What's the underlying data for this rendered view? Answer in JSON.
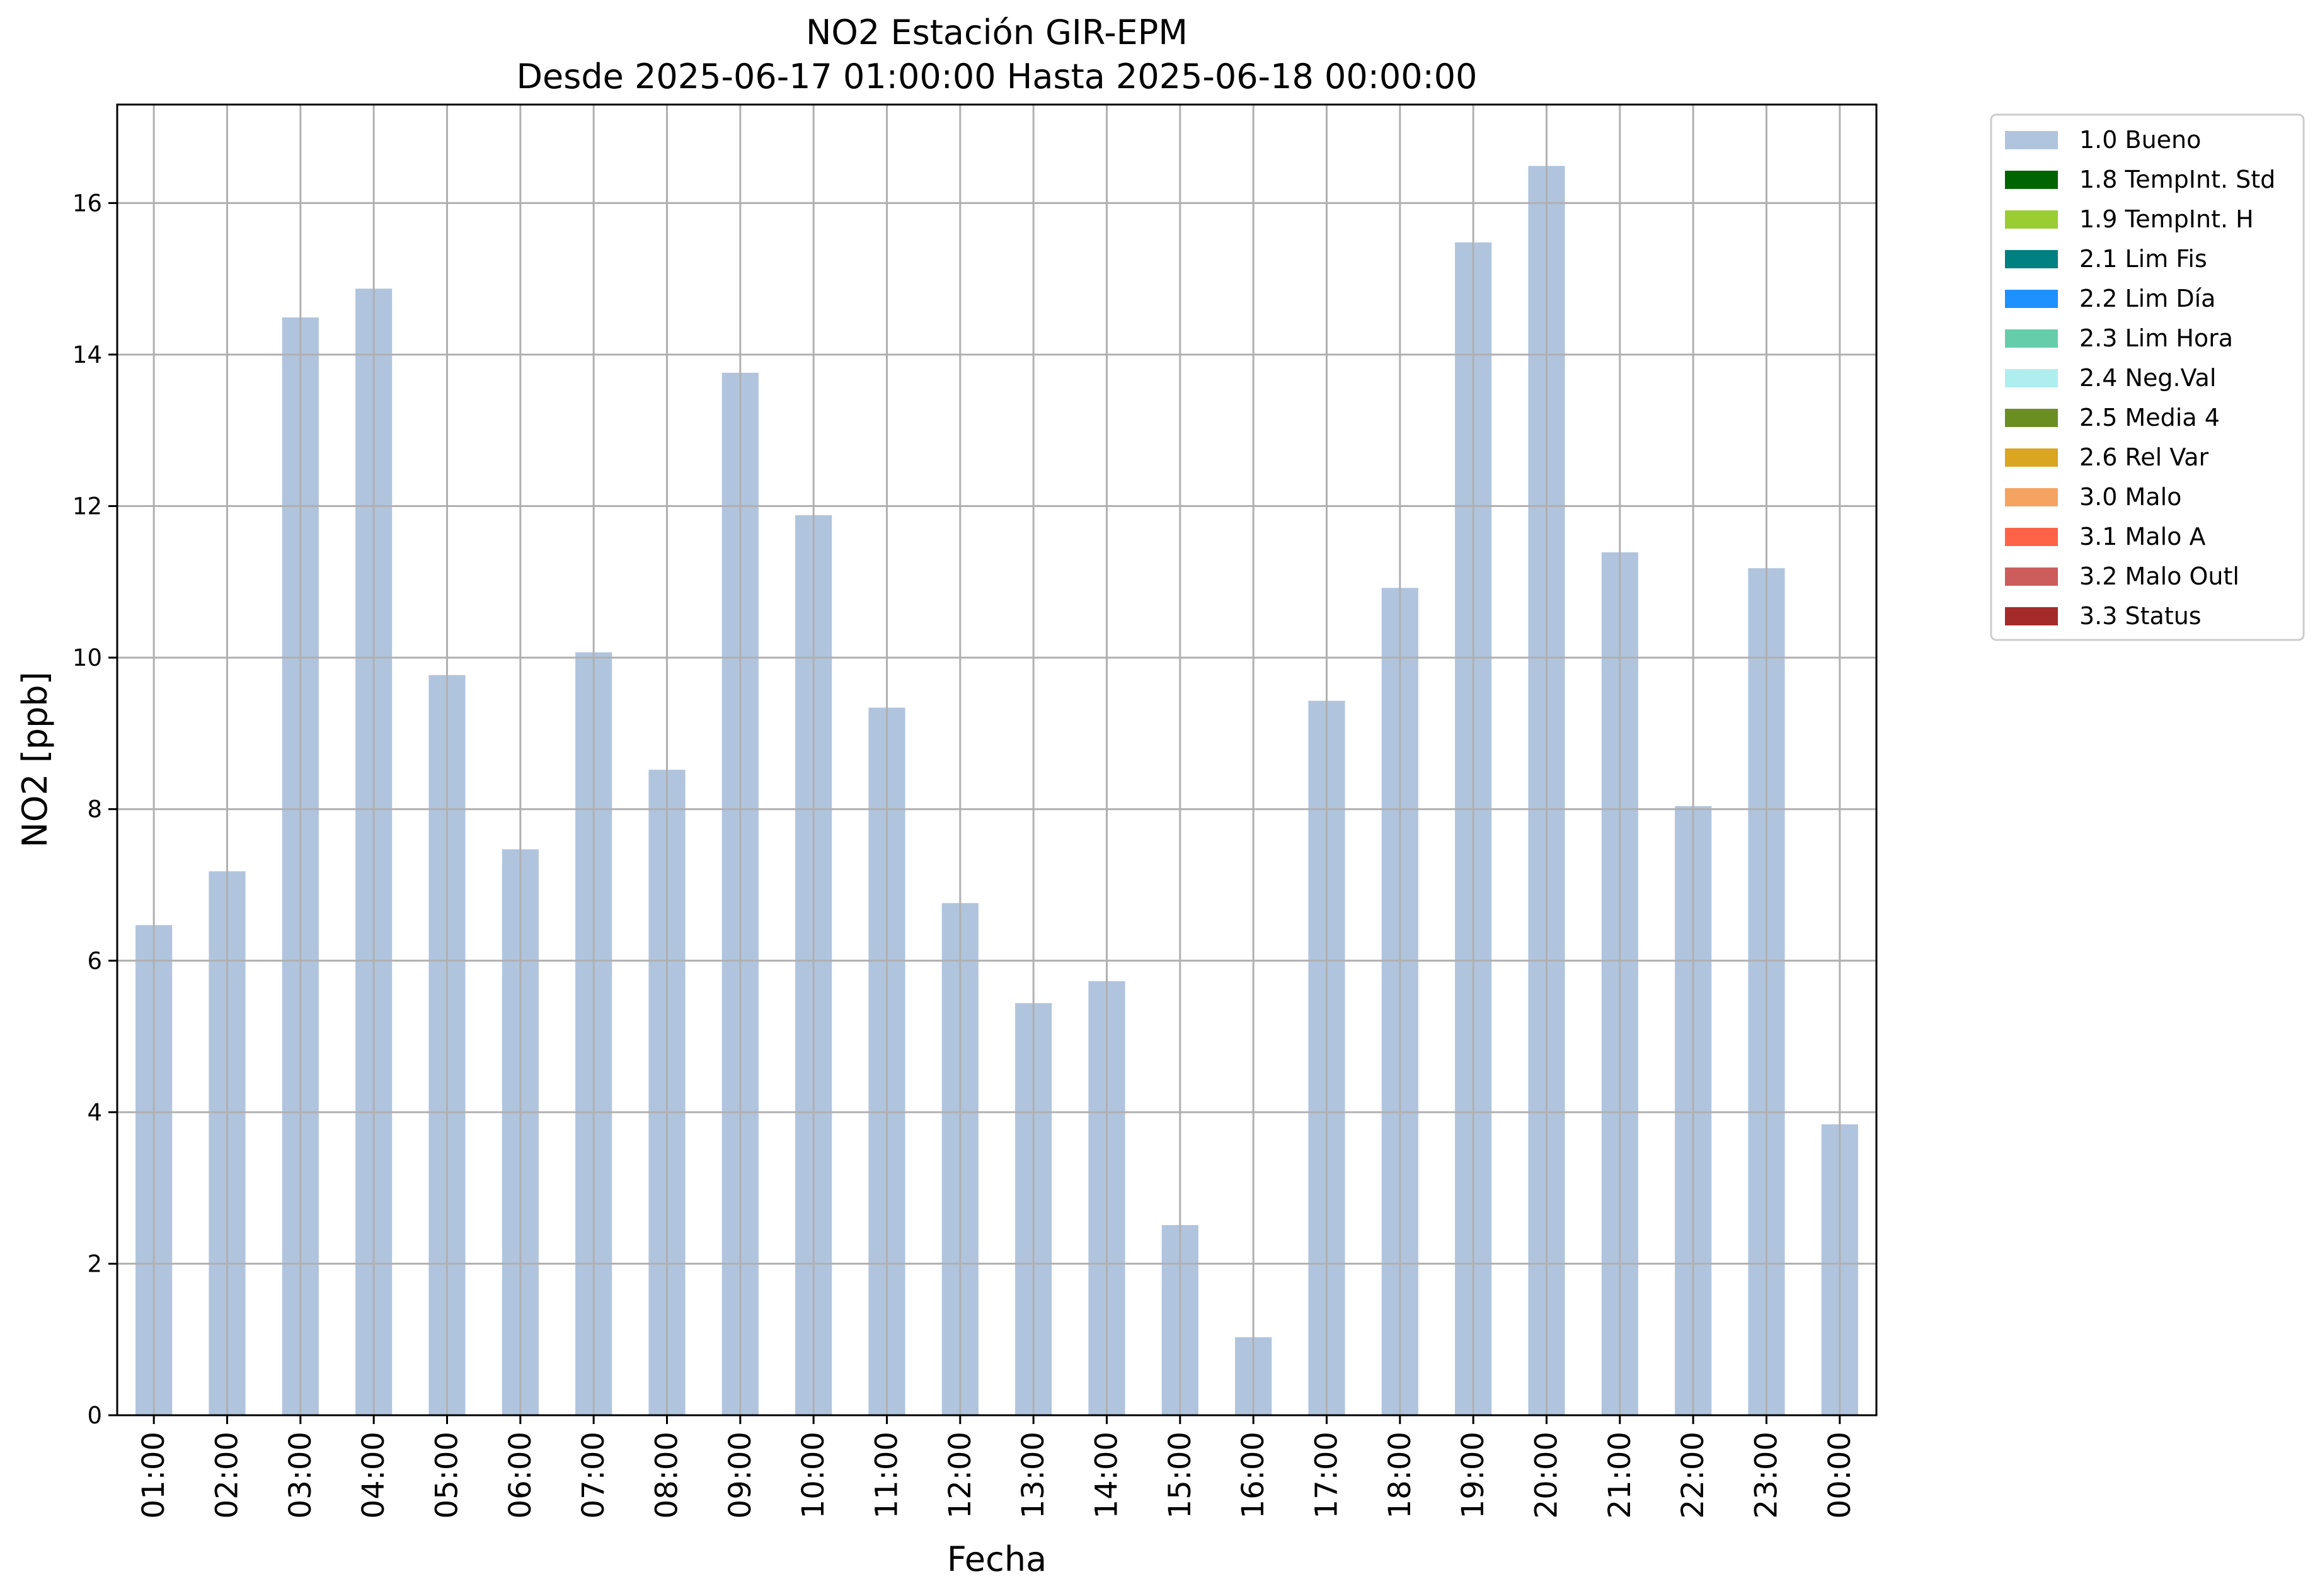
{
  "chart_data": {
    "type": "bar",
    "title": "NO2 Estación GIR-EPM",
    "subtitle": "Desde 2025-06-17 01:00:00 Hasta 2025-06-18 00:00:00",
    "xlabel": "Fecha",
    "ylabel": "NO2 [ppb]",
    "ylim": [
      0,
      17.3
    ],
    "yticks": [
      0,
      2,
      4,
      6,
      8,
      10,
      12,
      14,
      16
    ],
    "grid": true,
    "legend_position": "outside-top-right",
    "categories": [
      "01:00",
      "02:00",
      "03:00",
      "04:00",
      "05:00",
      "06:00",
      "07:00",
      "08:00",
      "09:00",
      "10:00",
      "11:00",
      "12:00",
      "13:00",
      "14:00",
      "15:00",
      "16:00",
      "17:00",
      "18:00",
      "19:00",
      "20:00",
      "21:00",
      "22:00",
      "23:00",
      "00:00"
    ],
    "series": [
      {
        "name": "1.0 Bueno",
        "color": "#b0c4de",
        "values": [
          6.47,
          7.18,
          14.49,
          14.87,
          9.77,
          7.47,
          10.07,
          8.52,
          13.76,
          11.88,
          9.34,
          6.76,
          5.44,
          5.73,
          2.51,
          1.03,
          9.43,
          10.92,
          15.48,
          16.49,
          11.39,
          8.04,
          11.18,
          3.84
        ]
      }
    ],
    "legend": [
      {
        "label": "1.0 Bueno",
        "color": "#b0c4de"
      },
      {
        "label": "1.8 TempInt. Std",
        "color": "#006400"
      },
      {
        "label": "1.9 TempInt. H",
        "color": "#9acd32"
      },
      {
        "label": "2.1 Lim Fis",
        "color": "#008080"
      },
      {
        "label": "2.2 Lim Día",
        "color": "#1e90ff"
      },
      {
        "label": "2.3 Lim Hora",
        "color": "#66cdaa"
      },
      {
        "label": "2.4 Neg.Val",
        "color": "#afeeee"
      },
      {
        "label": "2.5 Media 4",
        "color": "#6b8e23"
      },
      {
        "label": "2.6 Rel Var",
        "color": "#daa520"
      },
      {
        "label": "3.0 Malo",
        "color": "#f4a460"
      },
      {
        "label": "3.1 Malo A",
        "color": "#ff6347"
      },
      {
        "label": "3.2 Malo Outl",
        "color": "#cd5c5c"
      },
      {
        "label": "3.3 Status",
        "color": "#a52a2a"
      }
    ]
  }
}
